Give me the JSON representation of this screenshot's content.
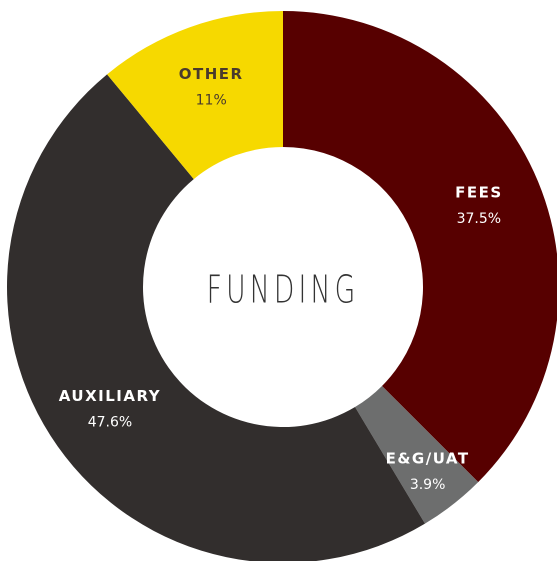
{
  "chart_data": {
    "type": "donut",
    "title": "FUNDING",
    "categories": [
      "FEES",
      "E&G/UAT",
      "AUXILIARY",
      "OTHER"
    ],
    "values": [
      37.5,
      3.9,
      47.6,
      11
    ],
    "value_labels": [
      "37.5%",
      "3.9%",
      "47.6%",
      "11%"
    ],
    "colors": [
      "#570000",
      "#6d6e6e",
      "#322e2d",
      "#f6d900"
    ]
  }
}
